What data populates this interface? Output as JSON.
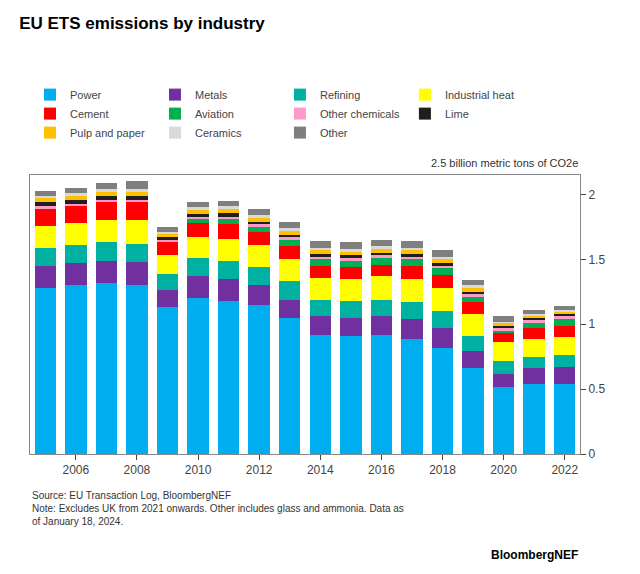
{
  "chart_data": {
    "type": "bar",
    "stacked": true,
    "title": "EU ETS emissions by industry",
    "subtitle": "2.5 billion metric tons of CO2e",
    "annotations": [
      "Source: EU Transaction Log, BloombergNEF\nNote: Excludes UK from 2021 onwards. Other includes glass and ammonia. Data as\nof January 18, 2024.",
      "BloombergNEF"
    ],
    "categories": [
      null,
      "2006",
      null,
      "2008",
      null,
      "2010",
      null,
      "2012",
      null,
      "2014",
      null,
      "2016",
      null,
      "2018",
      null,
      "2020",
      null,
      "2022"
    ],
    "series": [
      {
        "name": "Power",
        "color": "#00AEEF",
        "values": [
          1.28,
          1.3,
          1.32,
          1.3,
          1.13,
          1.2,
          1.18,
          1.15,
          1.05,
          0.92,
          0.91,
          0.92,
          0.89,
          0.82,
          0.66,
          0.52,
          0.54,
          0.54
        ]
      },
      {
        "name": "Metals",
        "color": "#7030A0",
        "values": [
          0.17,
          0.17,
          0.17,
          0.18,
          0.13,
          0.17,
          0.17,
          0.15,
          0.14,
          0.14,
          0.14,
          0.14,
          0.15,
          0.15,
          0.13,
          0.1,
          0.12,
          0.13
        ]
      },
      {
        "name": "Refining",
        "color": "#00B0A0",
        "values": [
          0.14,
          0.14,
          0.14,
          0.14,
          0.13,
          0.14,
          0.14,
          0.14,
          0.14,
          0.13,
          0.13,
          0.13,
          0.13,
          0.13,
          0.12,
          0.1,
          0.09,
          0.09
        ]
      },
      {
        "name": "Industrial heat",
        "color": "#FFFF00",
        "values": [
          0.17,
          0.17,
          0.17,
          0.18,
          0.14,
          0.16,
          0.17,
          0.17,
          0.17,
          0.17,
          0.17,
          0.18,
          0.18,
          0.18,
          0.17,
          0.14,
          0.14,
          0.14
        ]
      },
      {
        "name": "Cement",
        "color": "#FF0000",
        "values": [
          0.13,
          0.13,
          0.14,
          0.14,
          0.1,
          0.11,
          0.11,
          0.1,
          0.1,
          0.09,
          0.09,
          0.09,
          0.1,
          0.1,
          0.09,
          0.07,
          0.08,
          0.09
        ]
      },
      {
        "name": "Aviation",
        "color": "#00B050",
        "values": [
          0.0,
          0.0,
          0.0,
          0.0,
          0.0,
          0.03,
          0.04,
          0.04,
          0.05,
          0.05,
          0.05,
          0.05,
          0.05,
          0.05,
          0.04,
          0.02,
          0.04,
          0.05
        ]
      },
      {
        "name": "Other chemicals",
        "color": "#FF99CC",
        "values": [
          0.02,
          0.02,
          0.02,
          0.02,
          0.02,
          0.02,
          0.02,
          0.02,
          0.02,
          0.02,
          0.02,
          0.02,
          0.02,
          0.02,
          0.02,
          0.02,
          0.02,
          0.02
        ]
      },
      {
        "name": "Lime",
        "color": "#1F1F1F",
        "values": [
          0.03,
          0.03,
          0.03,
          0.03,
          0.02,
          0.02,
          0.03,
          0.02,
          0.02,
          0.02,
          0.02,
          0.02,
          0.02,
          0.02,
          0.02,
          0.02,
          0.02,
          0.02
        ]
      },
      {
        "name": "Pulp and paper",
        "color": "#FFC000",
        "values": [
          0.03,
          0.03,
          0.03,
          0.03,
          0.03,
          0.03,
          0.03,
          0.03,
          0.03,
          0.03,
          0.03,
          0.03,
          0.03,
          0.03,
          0.03,
          0.02,
          0.02,
          0.02
        ]
      },
      {
        "name": "Ceramics",
        "color": "#D9D9D9",
        "values": [
          0.02,
          0.02,
          0.02,
          0.02,
          0.01,
          0.02,
          0.02,
          0.02,
          0.02,
          0.02,
          0.02,
          0.02,
          0.02,
          0.02,
          0.02,
          0.01,
          0.01,
          0.01
        ]
      },
      {
        "name": "Other",
        "color": "#7F7F7F",
        "values": [
          0.04,
          0.04,
          0.05,
          0.06,
          0.04,
          0.04,
          0.04,
          0.05,
          0.05,
          0.05,
          0.05,
          0.05,
          0.05,
          0.05,
          0.04,
          0.04,
          0.03,
          0.03
        ]
      }
    ],
    "ylim": [
      0,
      2.15
    ],
    "yticks": [
      0,
      0.5,
      1,
      1.5,
      2
    ],
    "grid": false,
    "legend": "top"
  }
}
